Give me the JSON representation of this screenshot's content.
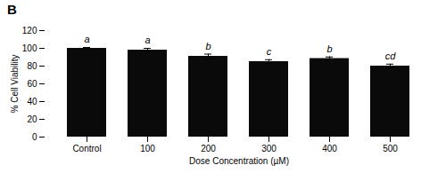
{
  "chart_data": {
    "type": "bar",
    "title": "B",
    "categories": [
      "Control",
      "100",
      "200",
      "300",
      "400",
      "500"
    ],
    "values": [
      100.0,
      98.0,
      91.0,
      85.0,
      88.5,
      80.0
    ],
    "errors": [
      1.0,
      2.0,
      2.5,
      2.2,
      1.8,
      2.2
    ],
    "annotations": [
      "a",
      "a",
      "b",
      "c",
      "b",
      "cd"
    ],
    "color": "#0a0a0a",
    "xlabel": "Dose Concentration (µM)",
    "ylabel": "% Cell Viability",
    "ylim": [
      0,
      120
    ],
    "yticks": [
      0,
      20,
      40,
      60,
      80,
      100,
      120
    ],
    "grid": false
  }
}
